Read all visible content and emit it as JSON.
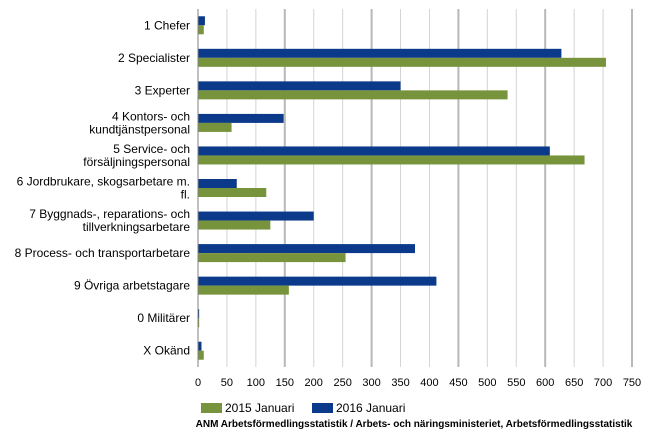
{
  "chart_data": {
    "type": "bar",
    "orientation": "horizontal",
    "title": "",
    "xlabel": "",
    "ylabel": "",
    "xlim": [
      0,
      750
    ],
    "x_ticks": [
      0,
      50,
      100,
      150,
      200,
      250,
      300,
      350,
      400,
      450,
      500,
      550,
      600,
      650,
      700,
      750
    ],
    "grid": "vertical",
    "legend_position": "bottom",
    "categories": [
      [
        "1 Chefer"
      ],
      [
        "2 Specialister"
      ],
      [
        "3 Experter"
      ],
      [
        "4 Kontors- och",
        "kundtjänstpersonal"
      ],
      [
        "5 Service- och",
        "försäljningspersonal"
      ],
      [
        "6 Jordbrukare, skogsarbetare m.",
        "fl."
      ],
      [
        "7 Byggnads-, reparations- och",
        "tillverkningsarbetare"
      ],
      [
        "8 Process- och transportarbetare"
      ],
      [
        "9 Övriga arbetstagare"
      ],
      [
        "0 Militärer"
      ],
      [
        "X Okänd"
      ]
    ],
    "series": [
      {
        "name": "2016 Januari",
        "color": "#0b3a8a",
        "values": [
          12,
          628,
          350,
          148,
          608,
          67,
          200,
          375,
          412,
          2,
          6
        ]
      },
      {
        "name": "2015 Januari",
        "color": "#77933c",
        "values": [
          10,
          705,
          535,
          58,
          668,
          118,
          125,
          255,
          157,
          2,
          10
        ]
      }
    ],
    "legend_order": [
      1,
      0
    ],
    "source": "ANM Arbetsförmedlingsstatistik / Arbets- och näringsministeriet, Arbetsförmedlingsstatistik"
  }
}
